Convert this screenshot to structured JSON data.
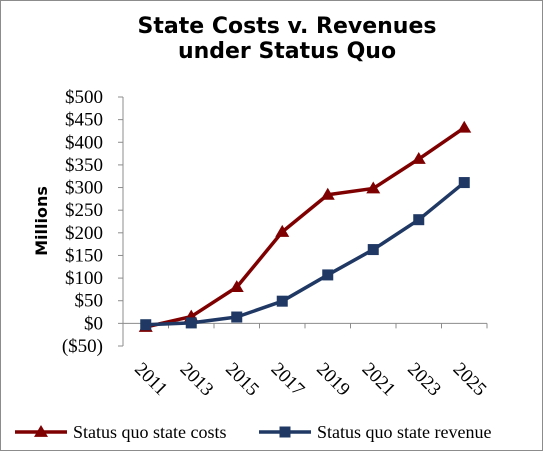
{
  "chart_data": {
    "type": "line",
    "title": [
      "State Costs v. Revenues",
      "under Status Quo"
    ],
    "ylabel": "Millions",
    "xlabel": "",
    "categories": [
      "2011",
      "2013",
      "2015",
      "2017",
      "2019",
      "2021",
      "2023",
      "2025"
    ],
    "ylim": [
      -50,
      500
    ],
    "yticks": [
      -50,
      0,
      50,
      100,
      150,
      200,
      250,
      300,
      350,
      400,
      450,
      500
    ],
    "ytick_labels": [
      "($50)",
      "$0",
      "$50",
      "$100",
      "$150",
      "$200",
      "$250",
      "$300",
      "$350",
      "$400",
      "$450",
      "$500"
    ],
    "grid": false,
    "legend_position": "bottom",
    "series": [
      {
        "name": "Status quo state costs",
        "color": "#7f0000",
        "marker": "triangle",
        "values": [
          -8,
          15,
          80,
          202,
          284,
          298,
          363,
          432
        ]
      },
      {
        "name": "Status quo state revenue",
        "color": "#1f3864",
        "marker": "square",
        "values": [
          -3,
          1,
          14,
          49,
          107,
          163,
          229,
          311
        ]
      }
    ]
  }
}
